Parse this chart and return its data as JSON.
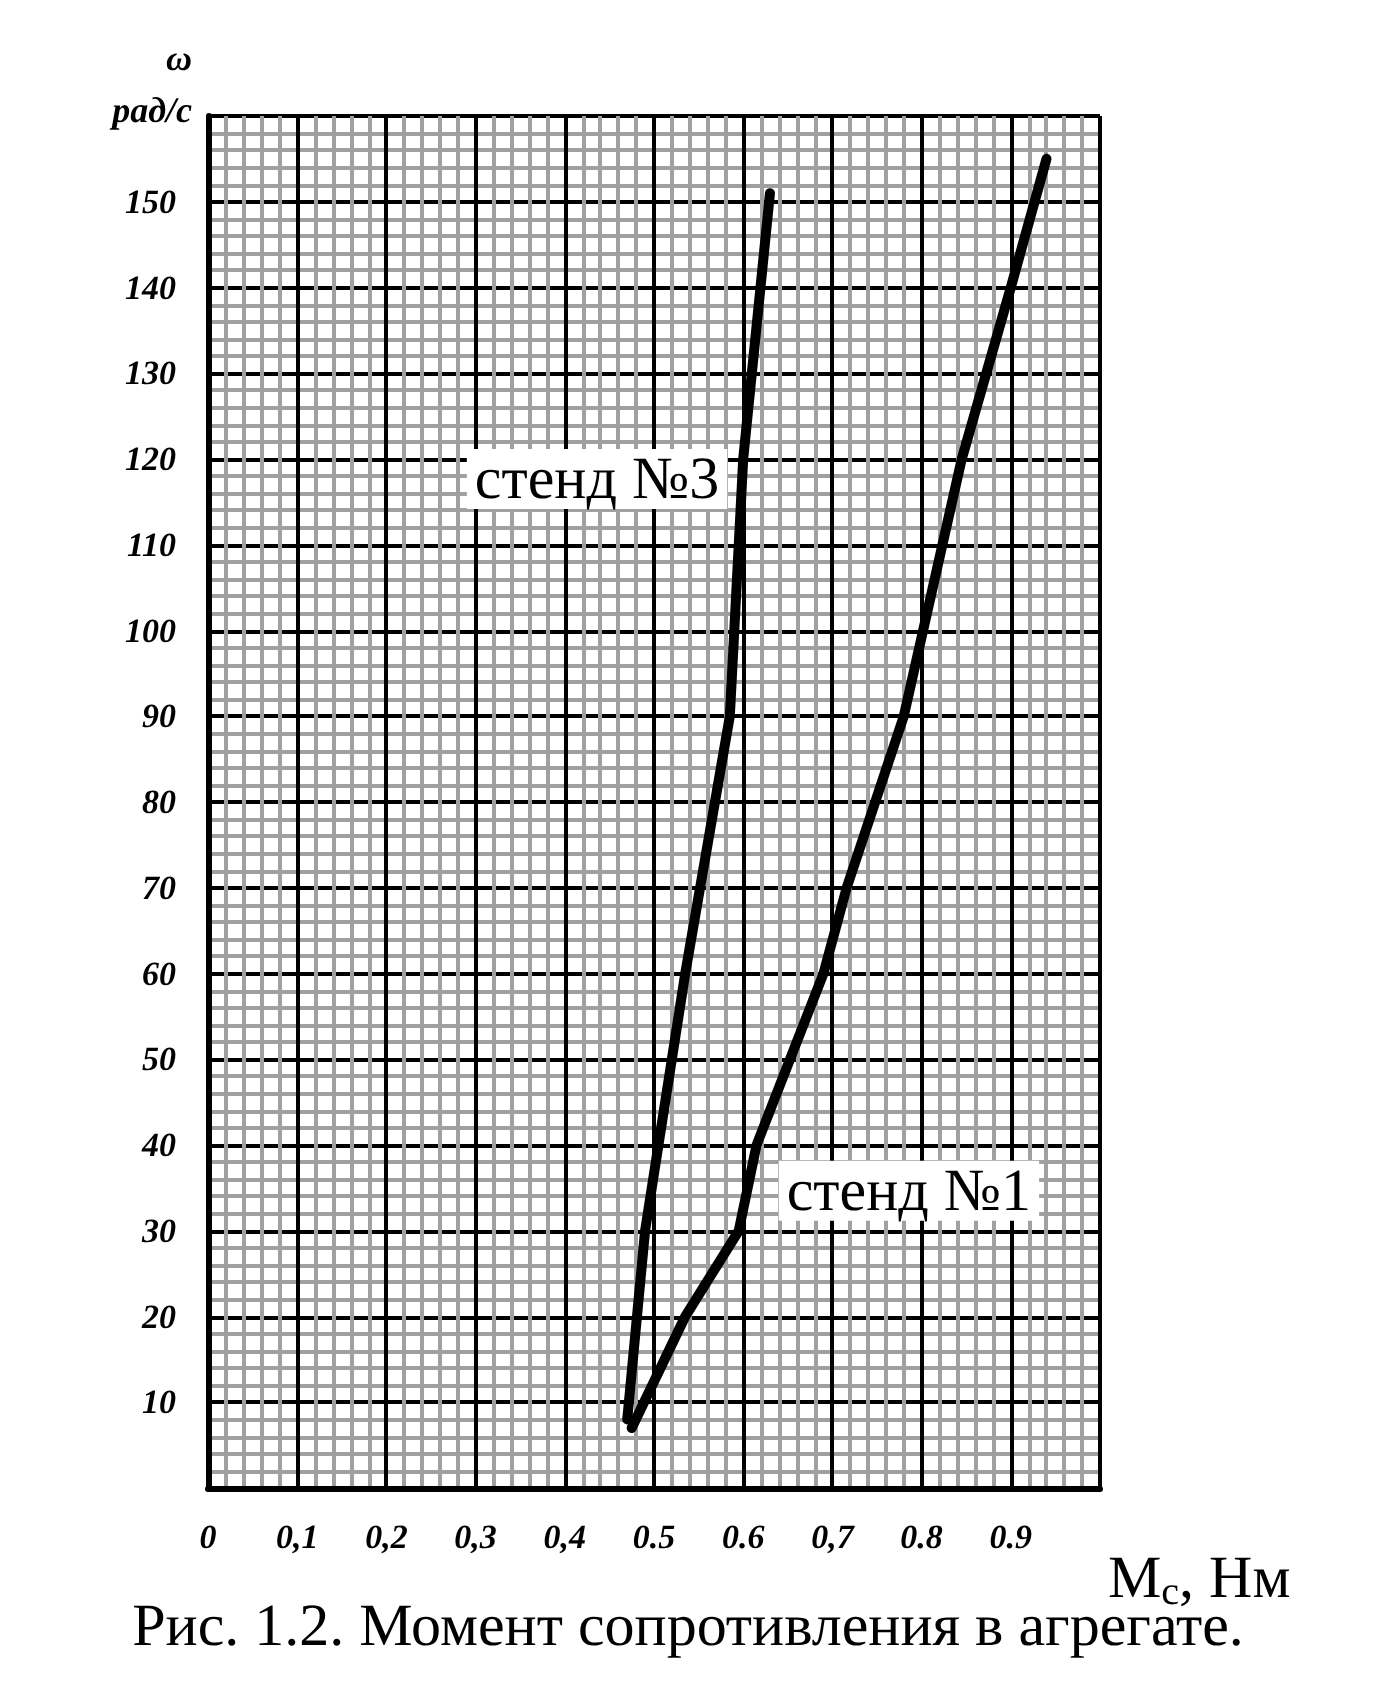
{
  "chart_data": {
    "type": "line",
    "xlabel": "M$_{c}$, Нм",
    "ylabel": "ω рад/с",
    "annotations": [
      "Рис. 1.2. Момент сопротивления в агрегате."
    ],
    "series": [
      {
        "name": "стенд №3",
        "color": "#000000",
        "x": [
          0.47,
          0.49,
          0.535,
          0.585,
          0.6,
          0.63
        ],
        "values": [
          8,
          30,
          60,
          90,
          120,
          151
        ]
      },
      {
        "name": "стенд №1",
        "color": "#000000",
        "x": [
          0.475,
          0.535,
          0.595,
          0.615,
          0.69,
          0.716,
          0.78,
          0.845,
          0.9,
          0.94
        ],
        "values": [
          7,
          20,
          30,
          40,
          60,
          70,
          90,
          120,
          140,
          155
        ]
      }
    ],
    "xlim": [
      0,
      1
    ],
    "ylim": [
      0,
      160
    ],
    "xticks": [
      0,
      {
        "value": 0.1,
        "label": "0,1"
      },
      {
        "value": 0.2,
        "label": "0,2"
      },
      {
        "value": 0.3,
        "label": "0,3"
      },
      {
        "value": 0.4,
        "label": "0,4"
      },
      {
        "value": 0.5,
        "label": "0.5"
      },
      {
        "value": 0.6,
        "label": "0.6"
      },
      {
        "value": 0.7,
        "label": "0,7"
      },
      {
        "value": 0.8,
        "label": "0.8"
      },
      {
        "value": 0.9,
        "label": "0.9"
      }
    ],
    "yticks": [
      10,
      20,
      30,
      40,
      50,
      60,
      70,
      80,
      90,
      100,
      110,
      120,
      130,
      140,
      150
    ],
    "grid": true,
    "legend": false,
    "marker": "none",
    "line_style": "solid"
  }
}
